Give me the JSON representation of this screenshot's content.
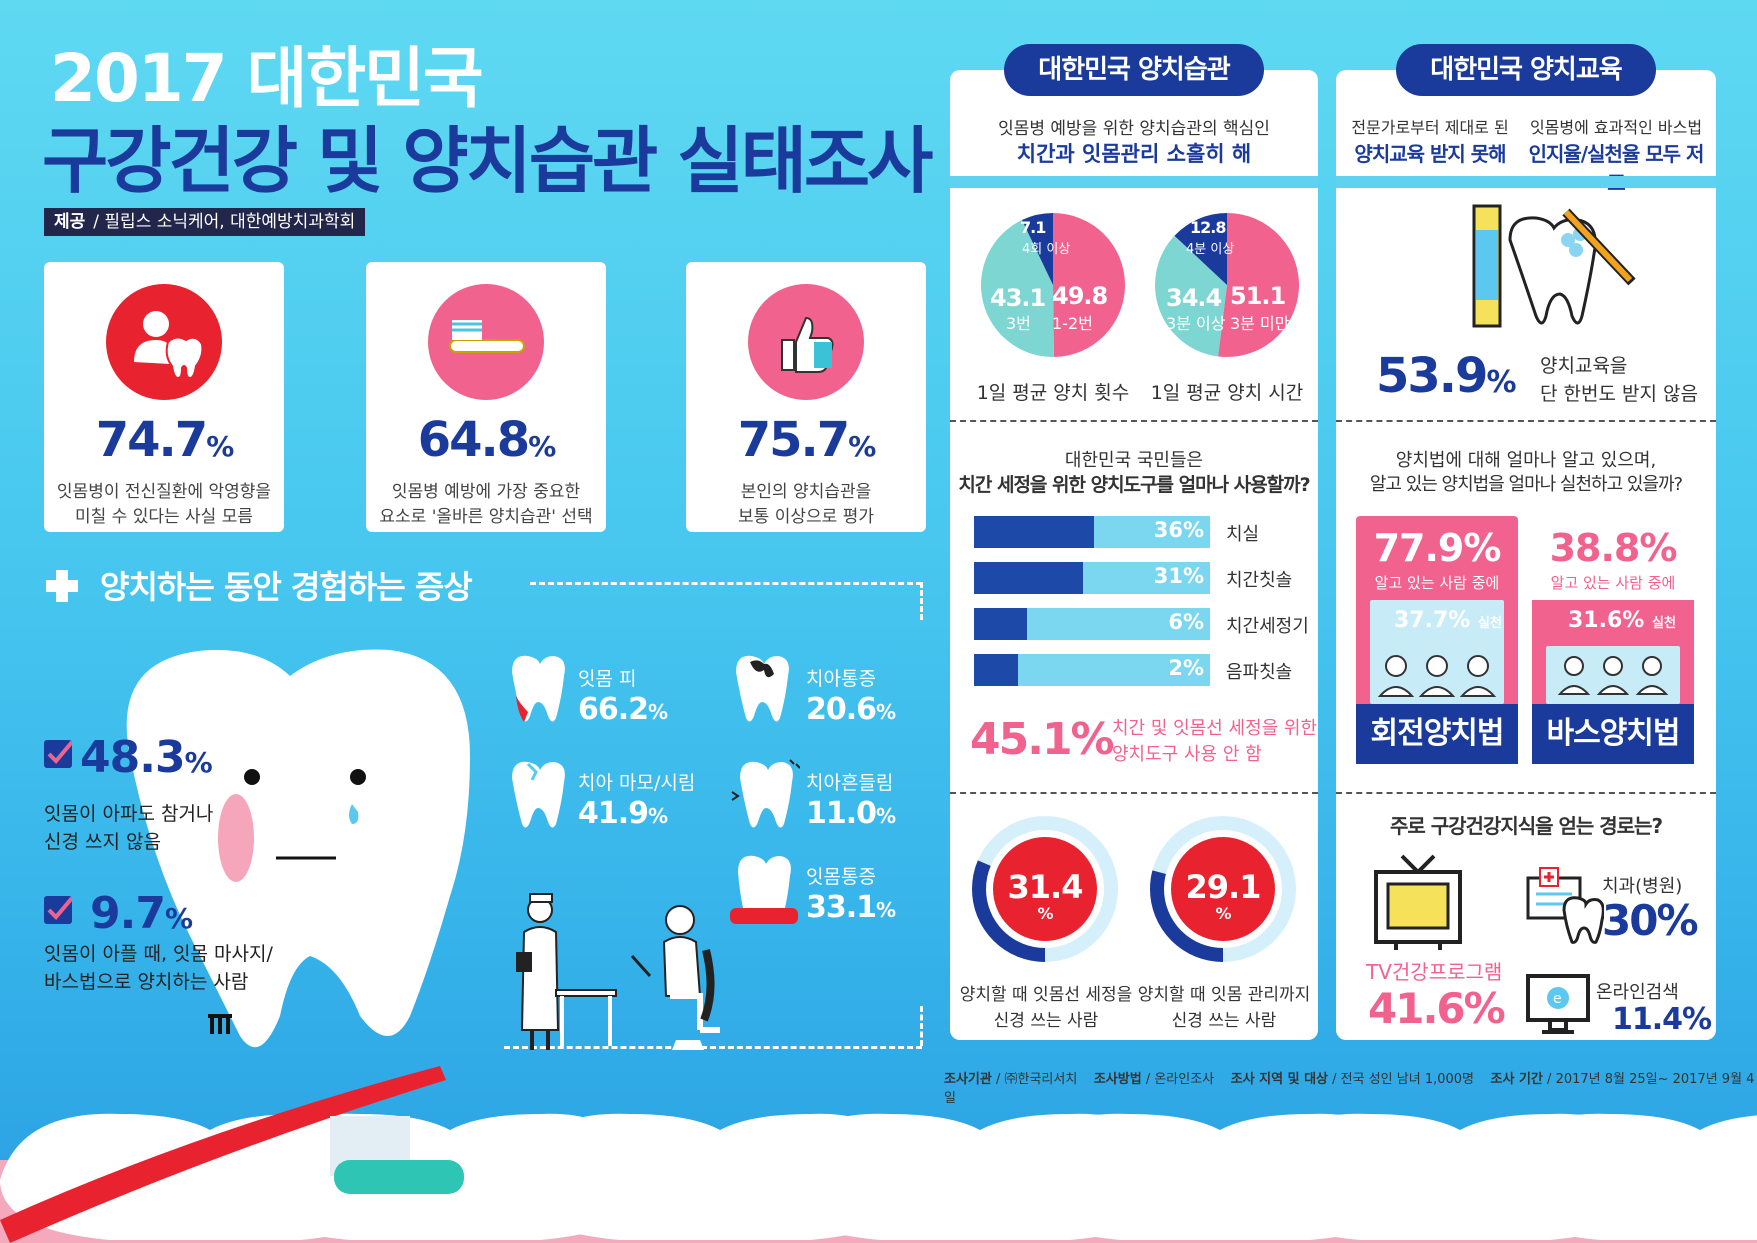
{
  "header": {
    "title_line1": "2017 대한민국",
    "title_line2": "구강건강 및 양치습관 실태조사",
    "credit_label": "제공",
    "credit_text": "필립스 소닉케어, 대한예방치과학회"
  },
  "stat_cards": [
    {
      "value": "74.7",
      "unit": "%",
      "line1": "잇몸병이 전신질환에 악영향을",
      "line2": "미칠 수 있다는 사실 모름"
    },
    {
      "value": "64.8",
      "unit": "%",
      "line1": "잇몸병 예방에 가장 중요한",
      "line2": "요소로 '올바른 양치습관' 선택"
    },
    {
      "value": "75.7",
      "unit": "%",
      "line1": "본인의 양치습관을",
      "line2": "보통 이상으로 평가"
    }
  ],
  "symptoms": {
    "section_title": "양치하는 동안 경험하는 증상",
    "checks": [
      {
        "value": "48.3",
        "unit": "%",
        "line1": "잇몸이 아파도 참거나",
        "line2": "신경 쓰지 않음"
      },
      {
        "value": "9.7",
        "unit": "%",
        "line1": "잇몸이 아플 때, 잇몸 마사지/",
        "line2": "바스법으로 양치하는 사람"
      }
    ],
    "items": [
      {
        "label": "잇몸 피",
        "value": "66.2",
        "unit": "%"
      },
      {
        "label": "치아통증",
        "value": "20.6",
        "unit": "%"
      },
      {
        "label": "치아 마모/시림",
        "value": "41.9",
        "unit": "%"
      },
      {
        "label": "치아흔들림",
        "value": "11.0",
        "unit": "%"
      },
      {
        "label": "잇몸통증",
        "value": "33.1",
        "unit": "%"
      }
    ]
  },
  "habits": {
    "pill": "대한민국 양치습관",
    "sub1": "잇몸병 예방을 위한 양치습관의 핵심인",
    "sub2": "치간과 잇몸관리 소홀히 해",
    "pie1": {
      "caption": "1일 평균 양치 횟수",
      "slices": [
        {
          "value": 49.8,
          "label": "1-2번"
        },
        {
          "value": 43.1,
          "label": "3번"
        },
        {
          "value": 7.1,
          "label": "4회 이상"
        }
      ]
    },
    "pie2": {
      "caption": "1일 평균 양치 시간",
      "slices": [
        {
          "value": 51.1,
          "label": "3분 미만"
        },
        {
          "value": 34.4,
          "label": "3분 이상"
        },
        {
          "value": 12.8,
          "label": "4분 이상"
        }
      ]
    },
    "tools_q1": "대한민국 국민들은",
    "tools_q2": "치간 세정을 위한 양치도구를 얼마나 사용할까?",
    "tools": [
      {
        "label": "치실",
        "value": 36,
        "text": "36%"
      },
      {
        "label": "치간칫솔",
        "value": 31,
        "text": "31%"
      },
      {
        "label": "치간세정기",
        "value": 6,
        "text": "6%"
      },
      {
        "label": "음파칫솔",
        "value": 2,
        "text": "2%"
      }
    ],
    "nonuse_value": "45.1%",
    "nonuse_line1": "치간 및 잇몸선 세정을 위한",
    "nonuse_line2": "양치도구 사용 안 함",
    "rings": [
      {
        "value": 31.4,
        "text": "31.4",
        "unit": "%",
        "line1": "양치할 때 잇몸선 세정을",
        "line2": "신경 쓰는 사람"
      },
      {
        "value": 29.1,
        "text": "29.1",
        "unit": "%",
        "line1": "양치할 때 잇몸 관리까지",
        "line2": "신경 쓰는 사람"
      }
    ]
  },
  "education": {
    "pill": "대한민국 양치교육",
    "sub_left1": "전문가로부터 제대로 된",
    "sub_left2": "양치교육 받지 못해",
    "sub_right1": "잇몸병에 효과적인 바스법",
    "sub_right2": "인지율/실천율 모두 저조",
    "no_edu_value": "53.9",
    "no_edu_unit": "%",
    "no_edu_line1": "양치교육을",
    "no_edu_line2": "단 한번도 받지 않음",
    "methods_q1": "양치법에 대해 얼마나 알고 있으며,",
    "methods_q2": "알고 있는 양치법을 얼마나 실천하고 있을까?",
    "methods": [
      {
        "name": "회전양치법",
        "known": "77.9%",
        "known_caption": "알고 있는 사람 중에",
        "practice": "37.7%",
        "practice_label": "실천"
      },
      {
        "name": "바스양치법",
        "known": "38.8%",
        "known_caption": "알고 있는 사람 중에",
        "practice": "31.6%",
        "practice_label": "실천"
      }
    ],
    "source_q": "주로 구강건강지식을 얻는 경로는?",
    "sources": [
      {
        "label": "TV건강프로그램",
        "value": "41.6%"
      },
      {
        "label": "치과(병원)",
        "value": "30%"
      },
      {
        "label": "온라인검색",
        "value": "11.4%"
      }
    ],
    "tv_icon": "tv-icon",
    "clinic_icon": "clinic-icon",
    "online_icon": "monitor-icon"
  },
  "footer": {
    "org_label": "조사기관",
    "org": "㈜한국리서치",
    "method_label": "조사방법",
    "method": "온라인조사",
    "target_label": "조사 지역 및 대상",
    "target": "전국 성인 남녀 1,000명",
    "period_label": "조사 기간",
    "period": "2017년 8월 25일~ 2017년 9월 4일"
  },
  "colors": {
    "navy": "#1b3b9c",
    "pink": "#f2628f",
    "red": "#e8232f",
    "teal": "#7dd6d1",
    "sky": "#7bd6f0"
  }
}
